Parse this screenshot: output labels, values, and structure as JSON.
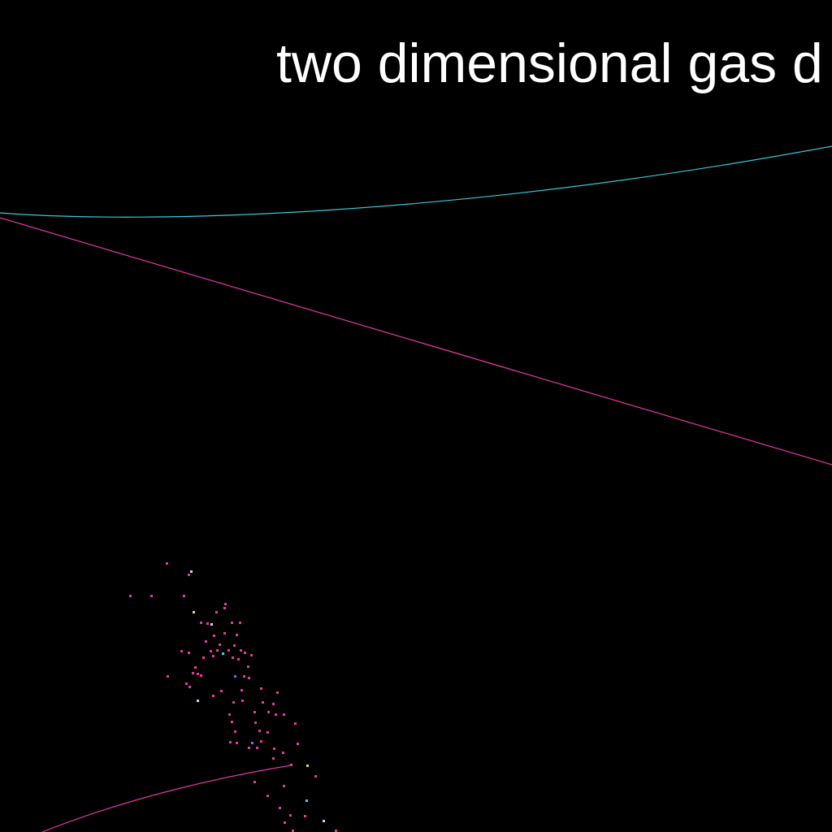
{
  "title": "two dimensional gas d",
  "colors": {
    "background": "#000000",
    "title_text": "#ffffff",
    "trail_cyan": "#39c8d8",
    "trail_magenta": "#e03a9e",
    "particle_magenta": "#e83aa0",
    "particle_cyan": "#46d0e0",
    "particle_blue": "#7070ff",
    "particle_yellow": "#e0e060",
    "particle_white": "#d0d0ff"
  }
}
